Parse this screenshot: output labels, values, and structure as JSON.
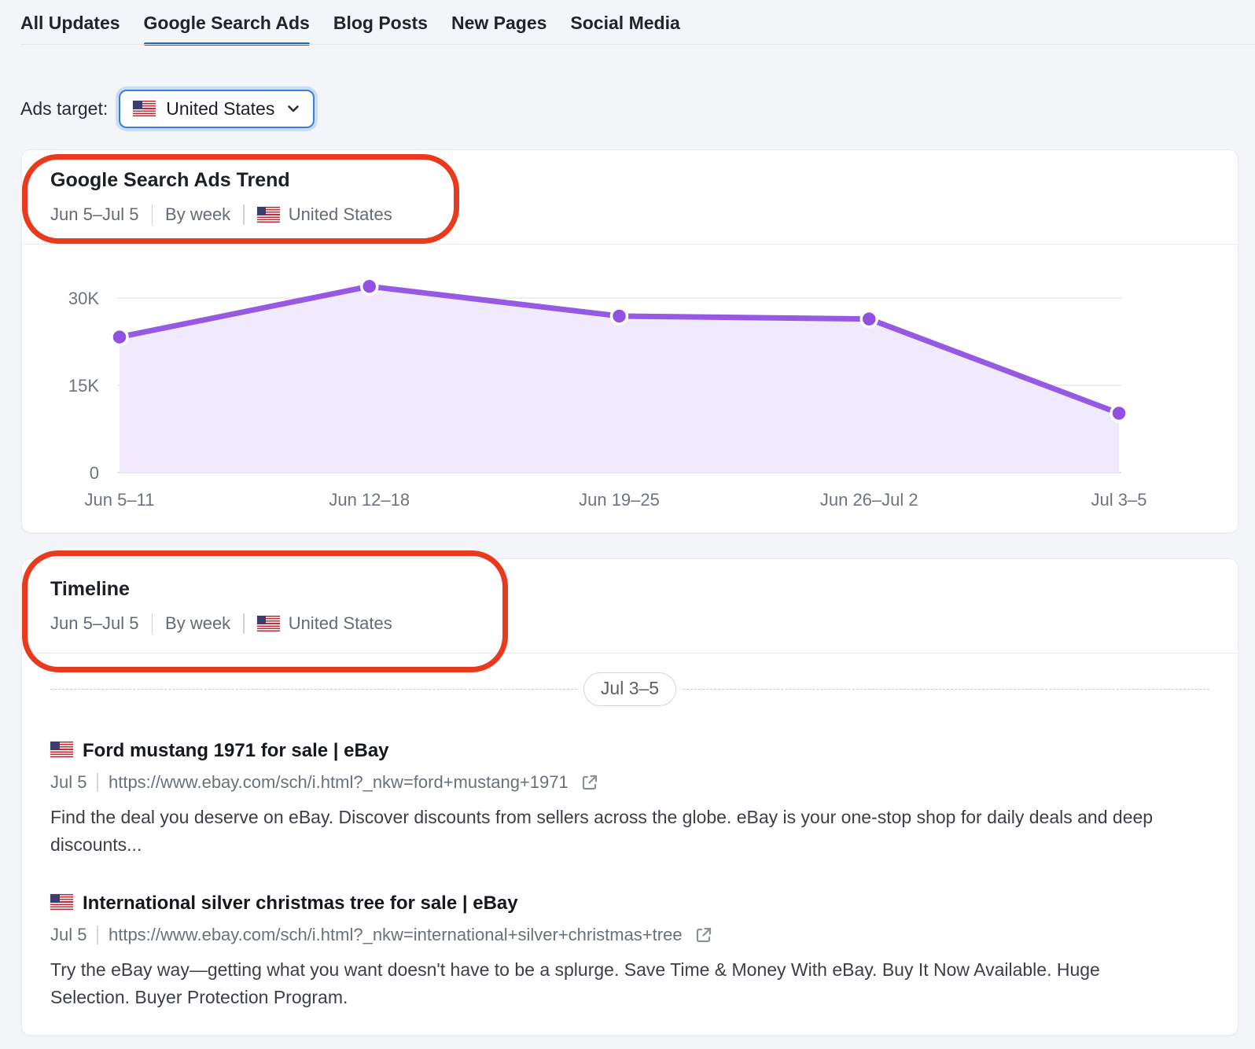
{
  "tabs": {
    "items": [
      {
        "label": "All Updates",
        "active": false
      },
      {
        "label": "Google Search Ads",
        "active": true
      },
      {
        "label": "Blog Posts",
        "active": false
      },
      {
        "label": "New Pages",
        "active": false
      },
      {
        "label": "Social Media",
        "active": false
      }
    ]
  },
  "ads_target": {
    "label": "Ads target:",
    "selected_country": "United States"
  },
  "trend_card": {
    "title": "Google Search Ads Trend",
    "date_range": "Jun 5–Jul 5",
    "granularity": "By week",
    "region": "United States"
  },
  "chart_data": {
    "type": "area",
    "title": "Google Search Ads Trend",
    "categories": [
      "Jun 5–11",
      "Jun 12–18",
      "Jun 19–25",
      "Jun 26–Jul 2",
      "Jul 3–5"
    ],
    "values": [
      23300,
      32000,
      26900,
      26400,
      10200
    ],
    "xlabel": "",
    "ylabel": "",
    "yticks": [
      "0",
      "15K",
      "30K"
    ],
    "ytick_values": [
      0,
      15000,
      30000
    ],
    "ylim": [
      0,
      33000
    ],
    "grid": true,
    "legend": "none",
    "line_color": "#9559e3",
    "point_color": "#9150e2",
    "fill_color": "#f1eafc",
    "grid_color": "#e8e8ea",
    "axis_line_color": "#d9d9db",
    "tick_label_color": "#6e747d"
  },
  "timeline_card": {
    "title": "Timeline",
    "date_range": "Jun 5–Jul 5",
    "granularity": "By week",
    "region": "United States",
    "separator_label": "Jul 3–5",
    "items": [
      {
        "title": "Ford mustang 1971 for sale | eBay",
        "date": "Jul 5",
        "url": "https://www.ebay.com/sch/i.html?_nkw=ford+mustang+1971",
        "description": "Find the deal you deserve on eBay. Discover discounts from sellers across the globe. eBay is your one-stop shop for daily deals and deep discounts..."
      },
      {
        "title": "International silver christmas tree for sale | eBay",
        "date": "Jul 5",
        "url": "https://www.ebay.com/sch/i.html?_nkw=international+silver+christmas+tree",
        "description": "Try the eBay way—getting what you want doesn't have to be a splurge. Save Time & Money With eBay. Buy It Now Available. Huge Selection. Buyer Protection Program."
      }
    ]
  },
  "colors": {
    "accent_blue": "#0e70c8",
    "annotation_red": "#e93a1e",
    "page_background": "#f4f5f8"
  }
}
